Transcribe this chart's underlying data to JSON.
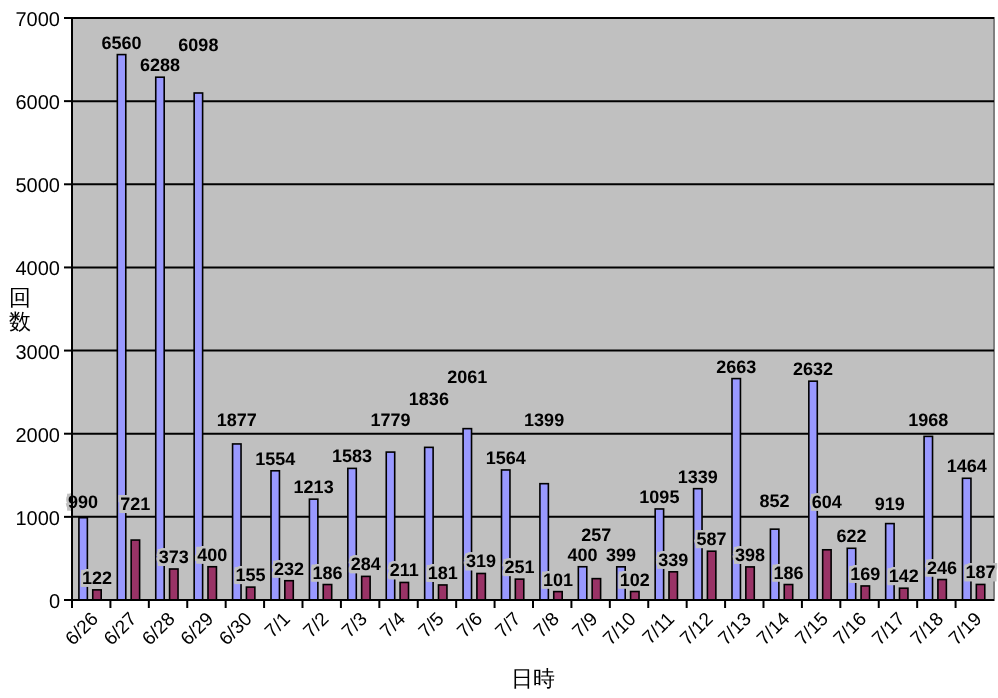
{
  "chart_data": {
    "type": "bar",
    "xlabel": "日時",
    "ylabel": "回数",
    "categories": [
      "6/26",
      "6/27",
      "6/28",
      "6/29",
      "6/30",
      "7/1",
      "7/2",
      "7/3",
      "7/4",
      "7/5",
      "7/6",
      "7/7",
      "7/8",
      "7/9",
      "7/10",
      "7/11",
      "7/12",
      "7/13",
      "7/14",
      "7/15",
      "7/16",
      "7/17",
      "7/18",
      "7/19"
    ],
    "series": [
      {
        "color": "#9999ff",
        "values": [
          990,
          6560,
          6288,
          6098,
          1877,
          1554,
          1213,
          1583,
          1779,
          1836,
          2061,
          1564,
          1399,
          400,
          399,
          1095,
          1339,
          2663,
          852,
          2632,
          622,
          919,
          1968,
          1464
        ]
      },
      {
        "color": "#993366",
        "values": [
          122,
          721,
          373,
          400,
          155,
          232,
          186,
          284,
          211,
          181,
          319,
          251,
          101,
          257,
          102,
          339,
          587,
          398,
          186,
          604,
          169,
          142,
          246,
          187
        ]
      }
    ],
    "ylim": [
      0,
      7000
    ],
    "yticks": [
      0,
      1000,
      2000,
      3000,
      4000,
      5000,
      6000,
      7000
    ],
    "grid": "y",
    "data_labels": true
  }
}
